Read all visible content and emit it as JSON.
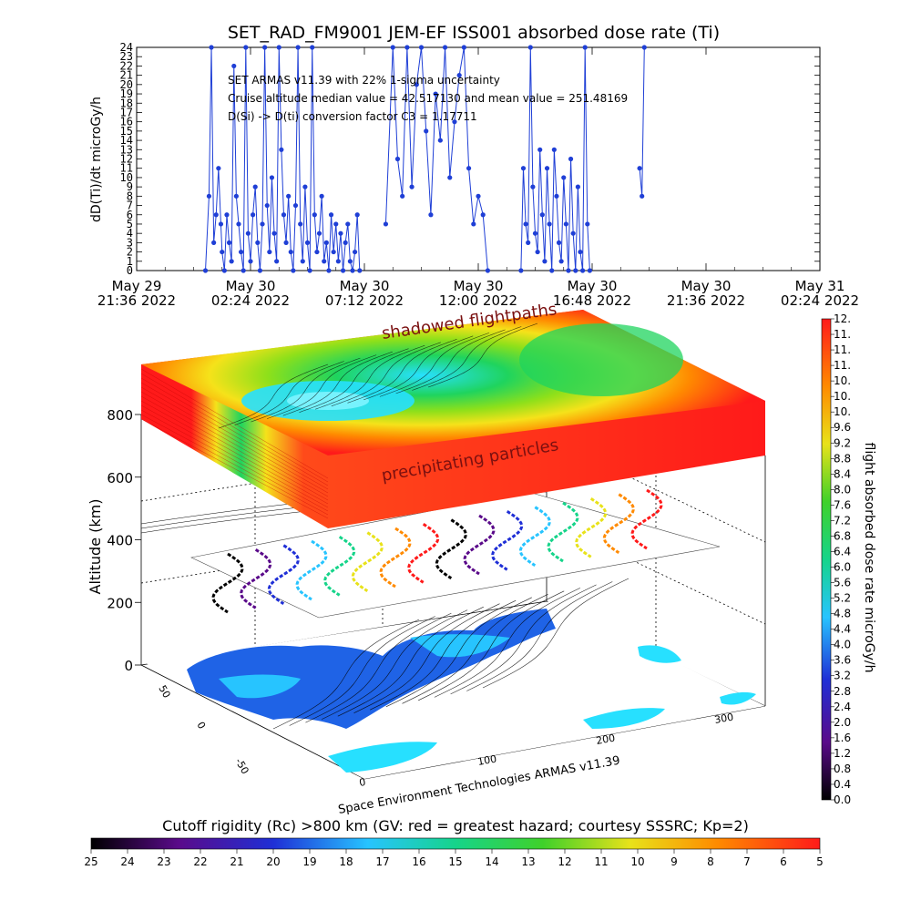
{
  "chart_data": [
    {
      "type": "line",
      "title": "SET_RAD_FM9001  JEM-EF ISS001 absorbed dose rate (Ti)",
      "ylabel": "dD(Ti)/dt microGy/h",
      "ylim": [
        0,
        24
      ],
      "y_ticks": [
        "0",
        "1",
        "2",
        "3",
        "4",
        "5",
        "6",
        "7",
        "8",
        "9",
        "10",
        "11",
        "12",
        "13",
        "14",
        "15",
        "16",
        "17",
        "18",
        "19",
        "20",
        "21",
        "22",
        "23",
        "24"
      ],
      "x_ticks": [
        {
          "date": "May 29",
          "time": "21:36 2022"
        },
        {
          "date": "May 30",
          "time": "02:24 2022"
        },
        {
          "date": "May 30",
          "time": "07:12 2022"
        },
        {
          "date": "May 30",
          "time": "12:00 2022"
        },
        {
          "date": "May 30",
          "time": "16:48 2022"
        },
        {
          "date": "May 30",
          "time": "21:36 2022"
        },
        {
          "date": "May 31",
          "time": "02:24 2022"
        }
      ],
      "annotations": [
        "SET ARMAS v11.39 with 22% 1-sigma uncertainty",
        "Cruise altitude median value = 42.517130 and  mean value = 251.48169",
        "D(Si) -> D(ti) conversion factor C3 = 1.17711"
      ],
      "series": [
        {
          "color": "#1f3fd6",
          "x_hours_labels": "time axis from May 29 21:36 to May 31 02:24",
          "points": [
            [
              2.9,
              0
            ],
            [
              3.05,
              8
            ],
            [
              3.15,
              24
            ],
            [
              3.25,
              3
            ],
            [
              3.35,
              6
            ],
            [
              3.45,
              11
            ],
            [
              3.55,
              5
            ],
            [
              3.6,
              2
            ],
            [
              3.7,
              0
            ],
            [
              3.8,
              6
            ],
            [
              3.9,
              3
            ],
            [
              4.0,
              1
            ],
            [
              4.1,
              22
            ],
            [
              4.2,
              8
            ],
            [
              4.3,
              5
            ],
            [
              4.4,
              2
            ],
            [
              4.5,
              0
            ],
            [
              4.6,
              24
            ],
            [
              4.7,
              4
            ],
            [
              4.8,
              1
            ],
            [
              4.9,
              6
            ],
            [
              5.0,
              9
            ],
            [
              5.1,
              3
            ],
            [
              5.2,
              0
            ],
            [
              5.3,
              5
            ],
            [
              5.4,
              24
            ],
            [
              5.5,
              7
            ],
            [
              5.6,
              2
            ],
            [
              5.7,
              10
            ],
            [
              5.8,
              4
            ],
            [
              5.9,
              1
            ],
            [
              6.0,
              24
            ],
            [
              6.1,
              13
            ],
            [
              6.2,
              6
            ],
            [
              6.3,
              3
            ],
            [
              6.4,
              8
            ],
            [
              6.5,
              2
            ],
            [
              6.6,
              0
            ],
            [
              6.7,
              7
            ],
            [
              6.8,
              24
            ],
            [
              6.9,
              5
            ],
            [
              7.0,
              1
            ],
            [
              7.1,
              9
            ],
            [
              7.2,
              3
            ],
            [
              7.3,
              0
            ],
            [
              7.4,
              24
            ],
            [
              7.5,
              6
            ],
            [
              7.6,
              2
            ],
            [
              7.7,
              4
            ],
            [
              7.8,
              8
            ],
            [
              7.9,
              1
            ],
            [
              8.0,
              3
            ],
            [
              8.1,
              0
            ],
            [
              8.2,
              6
            ],
            [
              8.3,
              2
            ],
            [
              8.4,
              5
            ],
            [
              8.5,
              1
            ],
            [
              8.6,
              4
            ],
            [
              8.7,
              0
            ],
            [
              8.8,
              3
            ],
            [
              8.9,
              5
            ],
            [
              9.0,
              1
            ],
            [
              9.1,
              0
            ],
            [
              9.2,
              2
            ],
            [
              9.3,
              6
            ],
            [
              9.4,
              0
            ]
          ]
        },
        {
          "color": "#1f3fd6",
          "points": [
            [
              10.5,
              5
            ],
            [
              10.8,
              24
            ],
            [
              11.0,
              12
            ],
            [
              11.2,
              8
            ],
            [
              11.4,
              24
            ],
            [
              11.6,
              9
            ],
            [
              11.8,
              20
            ],
            [
              12.0,
              24
            ],
            [
              12.2,
              15
            ],
            [
              12.4,
              6
            ],
            [
              12.6,
              19
            ],
            [
              12.8,
              14
            ],
            [
              13.0,
              24
            ],
            [
              13.2,
              10
            ],
            [
              13.4,
              16
            ],
            [
              13.6,
              21
            ],
            [
              13.8,
              24
            ],
            [
              14.0,
              11
            ],
            [
              14.2,
              5
            ],
            [
              14.4,
              8
            ],
            [
              14.6,
              6
            ],
            [
              14.8,
              0
            ]
          ]
        },
        {
          "color": "#1f3fd6",
          "points": [
            [
              16.2,
              0
            ],
            [
              16.3,
              11
            ],
            [
              16.4,
              5
            ],
            [
              16.5,
              3
            ],
            [
              16.6,
              24
            ],
            [
              16.7,
              9
            ],
            [
              16.8,
              4
            ],
            [
              16.9,
              2
            ],
            [
              17.0,
              13
            ],
            [
              17.1,
              6
            ],
            [
              17.2,
              1
            ],
            [
              17.3,
              11
            ],
            [
              17.4,
              5
            ],
            [
              17.5,
              0
            ],
            [
              17.6,
              13
            ],
            [
              17.7,
              8
            ],
            [
              17.8,
              3
            ],
            [
              17.9,
              1
            ],
            [
              18.0,
              10
            ],
            [
              18.1,
              5
            ],
            [
              18.2,
              0
            ],
            [
              18.3,
              12
            ],
            [
              18.4,
              4
            ],
            [
              18.5,
              0
            ],
            [
              18.6,
              9
            ],
            [
              18.7,
              2
            ],
            [
              18.8,
              0
            ],
            [
              18.9,
              24
            ],
            [
              19.0,
              5
            ],
            [
              19.1,
              0
            ]
          ]
        },
        {
          "color": "#1f3fd6",
          "points": [
            [
              21.2,
              11
            ],
            [
              21.3,
              8
            ],
            [
              21.4,
              24
            ]
          ]
        }
      ]
    },
    {
      "type": "heatmap",
      "subtype": "3d-surface-stack",
      "ylabel": "Altitude (km)",
      "zlim": [
        0,
        800
      ],
      "z_ticks": [
        "0",
        "200",
        "400",
        "600",
        "800"
      ],
      "lat_ticks": [
        "-50",
        "0",
        "50"
      ],
      "lon_ticks": [
        "0",
        "100",
        "200",
        "300"
      ],
      "layers": [
        {
          "label": "shadowed flightpaths",
          "altitude_km": 900
        },
        {
          "label": "precipitating particles",
          "altitude_km": 900
        },
        {
          "label": "flight track",
          "altitude_km": 420
        },
        {
          "label": "world map",
          "altitude_km": 0
        }
      ],
      "credit": "Space Environment Technologies ARMAS v11.39"
    },
    {
      "type": "heatmap",
      "subtype": "colorbar-vertical",
      "label": "flight absorbed dose rate microGy/h",
      "ticks": [
        "0.0",
        "0.4",
        "0.8",
        "1.2",
        "1.6",
        "2.0",
        "2.4",
        "2.8",
        "3.2",
        "3.6",
        "4.0",
        "4.4",
        "4.8",
        "5.2",
        "5.6",
        "6.0",
        "6.4",
        "6.8",
        "7.2",
        "7.6",
        "8.0",
        "8.4",
        "8.8",
        "9.2",
        "9.6",
        "10.",
        "10.",
        "10.",
        "11.",
        "11.",
        "11.",
        "12."
      ]
    },
    {
      "type": "heatmap",
      "subtype": "colorbar-horizontal",
      "label": "Cutoff rigidity (Rc) >800 km (GV: red = greatest hazard; courtesy SSSRC; Kp=2)",
      "ticks": [
        "25",
        "24",
        "23",
        "22",
        "21",
        "20",
        "19",
        "18",
        "17",
        "16",
        "15",
        "14",
        "13",
        "12",
        "11",
        "10",
        "9",
        "8",
        "7",
        "6",
        "5"
      ]
    }
  ]
}
